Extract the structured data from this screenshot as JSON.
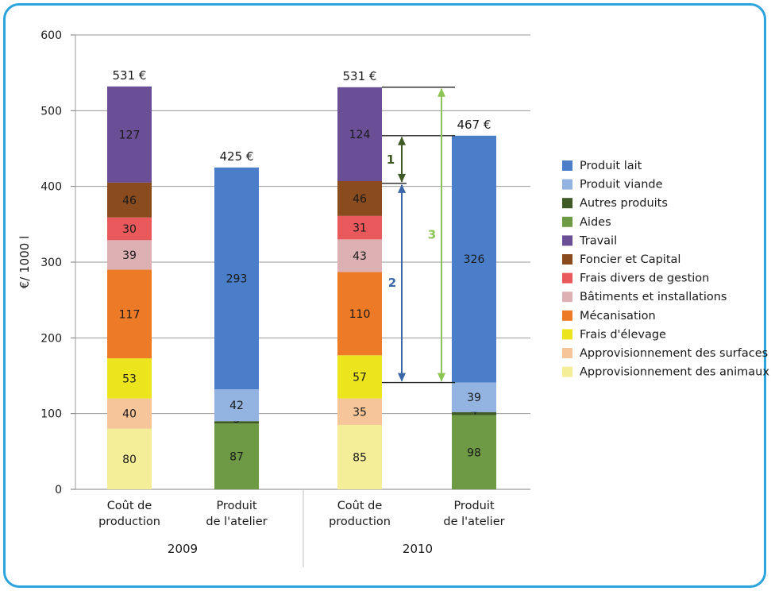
{
  "chart_data": {
    "type": "bar",
    "stacked": true,
    "ylabel": "€/ 1000 l",
    "ylim": [
      0,
      600
    ],
    "yticks": [
      0,
      100,
      200,
      300,
      400,
      500,
      600
    ],
    "grid": true,
    "legend_position": "right",
    "groups": [
      {
        "year": "2009",
        "bars": [
          {
            "label_line1": "Coût de",
            "label_line2": "production",
            "total_label": "531 €",
            "segments": [
              {
                "series": "Approvisionnement des animaux",
                "value": 80
              },
              {
                "series": "Approvisionnement des surfaces",
                "value": 40
              },
              {
                "series": "Frais d'élevage",
                "value": 53
              },
              {
                "series": "Mécanisation",
                "value": 117
              },
              {
                "series": "Bâtiments et installations",
                "value": 39
              },
              {
                "series": "Frais divers de gestion",
                "value": 30
              },
              {
                "series": "Foncier et Capital",
                "value": 46
              },
              {
                "series": "Travail",
                "value": 127
              }
            ]
          },
          {
            "label_line1": "Produit",
            "label_line2": "de l'atelier",
            "total_label": "425 €",
            "segments": [
              {
                "series": "Aides",
                "value": 87
              },
              {
                "series": "Autres produits",
                "value": 3
              },
              {
                "series": "Produit viande",
                "value": 42
              },
              {
                "series": "Produit lait",
                "value": 293
              }
            ]
          }
        ]
      },
      {
        "year": "2010",
        "bars": [
          {
            "label_line1": "Coût de",
            "label_line2": "production",
            "total_label": "531 €",
            "segments": [
              {
                "series": "Approvisionnement des animaux",
                "value": 85
              },
              {
                "series": "Approvisionnement des surfaces",
                "value": 35
              },
              {
                "series": "Frais d'élevage",
                "value": 57
              },
              {
                "series": "Mécanisation",
                "value": 110
              },
              {
                "series": "Bâtiments et installations",
                "value": 43
              },
              {
                "series": "Frais divers de gestion",
                "value": 31
              },
              {
                "series": "Foncier et Capital",
                "value": 46
              },
              {
                "series": "Travail",
                "value": 124
              }
            ]
          },
          {
            "label_line1": "Produit",
            "label_line2": "de l'atelier",
            "total_label": "467 €",
            "segments": [
              {
                "series": "Aides",
                "value": 98
              },
              {
                "series": "Autres produits",
                "value": 4
              },
              {
                "series": "Produit viande",
                "value": 39
              },
              {
                "series": "Produit lait",
                "value": 326
              }
            ]
          }
        ]
      }
    ],
    "legend": [
      {
        "name": "Produit lait",
        "color": "#4b7ec8"
      },
      {
        "name": "Produit viande",
        "color": "#93b3e0"
      },
      {
        "name": "Autres produits",
        "color": "#3f5a24"
      },
      {
        "name": "Aides",
        "color": "#6f9a45"
      },
      {
        "name": "Travail",
        "color": "#6a4f96"
      },
      {
        "name": "Foncier et Capital",
        "color": "#8a4b1f"
      },
      {
        "name": "Frais divers de gestion",
        "color": "#e9595c"
      },
      {
        "name": "Bâtiments et installations",
        "color": "#ddb1b4"
      },
      {
        "name": "Mécanisation",
        "color": "#ec7a26"
      },
      {
        "name": "Frais d'élevage",
        "color": "#ece51d"
      },
      {
        "name": "Approvisionnement des surfaces",
        "color": "#f7c59a"
      },
      {
        "name": "Approvisionnement des animaux",
        "color": "#f5ee98"
      }
    ],
    "annotations": [
      {
        "label": "1",
        "from": 404,
        "to": 467,
        "color": "#3f5a24"
      },
      {
        "label": "2",
        "from": 141,
        "to": 404,
        "color": "#3b67a8"
      },
      {
        "label": "3",
        "from": 141,
        "to": 531,
        "color": "#8cc456"
      }
    ]
  }
}
